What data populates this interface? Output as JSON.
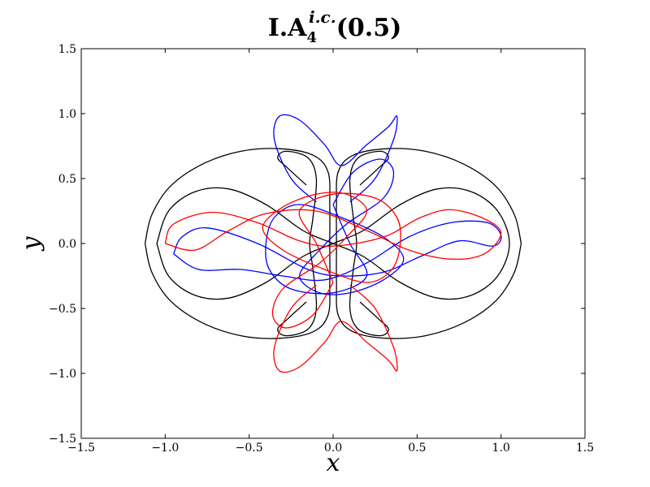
{
  "chart_data": {
    "type": "line",
    "title": {
      "main": "I.A",
      "subscript": "4",
      "superscript": "i.c.",
      "suffix": "(0.5)"
    },
    "xlabel": "x",
    "ylabel": "y",
    "xlim": [
      -1.5,
      1.5
    ],
    "ylim": [
      -1.5,
      1.5
    ],
    "xticks": [
      -1.5,
      -1.0,
      -0.5,
      0.0,
      0.5,
      1.0,
      1.5
    ],
    "yticks": [
      -1.5,
      -1.0,
      -0.5,
      0.0,
      0.5,
      1.0,
      1.5
    ],
    "xtick_labels": [
      "−1.5",
      "−1.0",
      "−0.5",
      "0.0",
      "0.5",
      "1.0",
      "1.5"
    ],
    "ytick_labels": [
      "−1.5",
      "−1.0",
      "−0.5",
      "0.0",
      "0.5",
      "1.0",
      "1.5"
    ],
    "grid": false,
    "series": [
      {
        "color": "#000000",
        "points": [
          [
            -1.12,
            0.0
          ],
          [
            -1.08,
            0.22
          ],
          [
            -0.97,
            0.44
          ],
          [
            -0.78,
            0.61
          ],
          [
            -0.55,
            0.71
          ],
          [
            -0.32,
            0.73
          ],
          [
            -0.12,
            0.68
          ],
          [
            -0.03,
            0.55
          ],
          [
            -0.02,
            0.3
          ],
          [
            -0.02,
            0.0
          ],
          [
            -0.02,
            -0.3
          ],
          [
            -0.03,
            -0.55
          ],
          [
            -0.12,
            -0.68
          ],
          [
            -0.32,
            -0.73
          ],
          [
            -0.55,
            -0.71
          ],
          [
            -0.78,
            -0.61
          ],
          [
            -0.97,
            -0.44
          ],
          [
            -1.08,
            -0.22
          ],
          [
            -1.12,
            0.0
          ]
        ]
      },
      {
        "color": "#000000",
        "points": [
          [
            1.12,
            0.0
          ],
          [
            1.08,
            0.22
          ],
          [
            0.97,
            0.44
          ],
          [
            0.78,
            0.61
          ],
          [
            0.55,
            0.71
          ],
          [
            0.32,
            0.73
          ],
          [
            0.12,
            0.68
          ],
          [
            0.03,
            0.55
          ],
          [
            0.02,
            0.3
          ],
          [
            0.02,
            0.0
          ],
          [
            0.02,
            -0.3
          ],
          [
            0.03,
            -0.55
          ],
          [
            0.12,
            -0.68
          ],
          [
            0.32,
            -0.73
          ],
          [
            0.55,
            -0.71
          ],
          [
            0.78,
            -0.61
          ],
          [
            0.97,
            -0.44
          ],
          [
            1.08,
            -0.22
          ],
          [
            1.12,
            0.0
          ]
        ]
      },
      {
        "color": "#000000",
        "points": [
          [
            -1.05,
            0.0
          ],
          [
            -0.98,
            0.25
          ],
          [
            -0.82,
            0.4
          ],
          [
            -0.62,
            0.42
          ],
          [
            -0.4,
            0.3
          ],
          [
            -0.18,
            0.1
          ],
          [
            0.0,
            0.0
          ],
          [
            0.18,
            -0.1
          ],
          [
            0.4,
            -0.3
          ],
          [
            0.62,
            -0.42
          ],
          [
            0.82,
            -0.4
          ],
          [
            0.98,
            -0.25
          ],
          [
            1.05,
            0.0
          ],
          [
            0.98,
            0.25
          ],
          [
            0.82,
            0.4
          ],
          [
            0.62,
            0.42
          ],
          [
            0.4,
            0.3
          ],
          [
            0.18,
            0.1
          ],
          [
            0.0,
            0.0
          ],
          [
            -0.18,
            -0.1
          ],
          [
            -0.4,
            -0.3
          ],
          [
            -0.62,
            -0.42
          ],
          [
            -0.82,
            -0.4
          ],
          [
            -0.98,
            -0.25
          ],
          [
            -1.05,
            0.0
          ]
        ]
      },
      {
        "color": "#000000",
        "points": [
          [
            -0.16,
            0.45
          ],
          [
            -0.27,
            0.58
          ],
          [
            -0.33,
            0.66
          ],
          [
            -0.28,
            0.71
          ],
          [
            -0.15,
            0.66
          ],
          [
            -0.1,
            0.5
          ],
          [
            -0.12,
            0.2
          ],
          [
            -0.14,
            0.0
          ],
          [
            -0.12,
            -0.2
          ],
          [
            -0.1,
            -0.5
          ],
          [
            -0.15,
            -0.66
          ],
          [
            -0.28,
            -0.71
          ],
          [
            -0.33,
            -0.66
          ],
          [
            -0.27,
            -0.58
          ],
          [
            -0.16,
            -0.45
          ]
        ]
      },
      {
        "color": "#000000",
        "points": [
          [
            0.16,
            0.45
          ],
          [
            0.27,
            0.58
          ],
          [
            0.33,
            0.66
          ],
          [
            0.28,
            0.71
          ],
          [
            0.15,
            0.66
          ],
          [
            0.1,
            0.5
          ],
          [
            0.12,
            0.2
          ],
          [
            0.14,
            0.0
          ],
          [
            0.12,
            -0.2
          ],
          [
            0.1,
            -0.5
          ],
          [
            0.15,
            -0.66
          ],
          [
            0.28,
            -0.71
          ],
          [
            0.33,
            -0.66
          ],
          [
            0.27,
            -0.58
          ],
          [
            0.16,
            -0.45
          ]
        ]
      },
      {
        "color": "#0000ff",
        "points": [
          [
            -0.95,
            -0.08
          ],
          [
            -0.9,
            0.05
          ],
          [
            -0.75,
            0.12
          ],
          [
            -0.45,
            0.0
          ],
          [
            -0.15,
            -0.2
          ],
          [
            0.05,
            -0.25
          ],
          [
            0.3,
            -0.22
          ],
          [
            0.52,
            -0.1
          ],
          [
            0.75,
            0.02
          ],
          [
            0.95,
            -0.02
          ],
          [
            1.0,
            0.06
          ],
          [
            0.92,
            0.16
          ],
          [
            0.7,
            0.16
          ],
          [
            0.45,
            0.05
          ],
          [
            0.2,
            -0.15
          ],
          [
            -0.05,
            -0.28
          ],
          [
            -0.3,
            -0.25
          ],
          [
            -0.55,
            -0.2
          ],
          [
            -0.8,
            -0.2
          ],
          [
            -0.95,
            -0.08
          ]
        ]
      },
      {
        "color": "#0000ff",
        "points": [
          [
            -0.1,
            0.32
          ],
          [
            -0.25,
            0.5
          ],
          [
            -0.35,
            0.8
          ],
          [
            -0.32,
            0.98
          ],
          [
            -0.2,
            0.95
          ],
          [
            -0.05,
            0.76
          ],
          [
            0.05,
            0.6
          ],
          [
            0.2,
            0.76
          ],
          [
            0.33,
            0.9
          ],
          [
            0.38,
            0.98
          ],
          [
            0.36,
            0.8
          ],
          [
            0.25,
            0.5
          ],
          [
            0.1,
            0.32
          ]
        ]
      },
      {
        "color": "#0000ff",
        "points": [
          [
            0.0,
            0.3
          ],
          [
            0.12,
            0.55
          ],
          [
            0.28,
            0.65
          ],
          [
            0.36,
            0.55
          ],
          [
            0.3,
            0.35
          ],
          [
            0.08,
            0.15
          ],
          [
            -0.08,
            -0.05
          ],
          [
            -0.2,
            -0.25
          ],
          [
            -0.08,
            -0.38
          ],
          [
            0.1,
            -0.38
          ],
          [
            0.3,
            -0.28
          ],
          [
            0.42,
            -0.12
          ],
          [
            0.3,
            0.05
          ],
          [
            0.05,
            0.2
          ],
          [
            -0.2,
            0.3
          ],
          [
            -0.35,
            0.2
          ],
          [
            -0.4,
            0.0
          ],
          [
            -0.38,
            -0.2
          ],
          [
            -0.25,
            -0.35
          ],
          [
            0.0,
            -0.38
          ],
          [
            0.2,
            -0.25
          ],
          [
            0.1,
            0.0
          ],
          [
            0.0,
            0.3
          ]
        ]
      },
      {
        "color": "#ff0000",
        "points": [
          [
            -1.0,
            0.0
          ],
          [
            -0.95,
            0.15
          ],
          [
            -0.72,
            0.24
          ],
          [
            -0.45,
            0.16
          ],
          [
            -0.2,
            0.02
          ],
          [
            0.0,
            -0.02
          ],
          [
            0.3,
            0.05
          ],
          [
            0.52,
            0.2
          ],
          [
            0.7,
            0.26
          ],
          [
            0.9,
            0.19
          ],
          [
            1.0,
            0.08
          ],
          [
            0.9,
            -0.08
          ],
          [
            0.7,
            -0.12
          ],
          [
            0.45,
            -0.05
          ],
          [
            0.2,
            0.1
          ],
          [
            -0.1,
            0.25
          ],
          [
            -0.4,
            0.23
          ],
          [
            -0.62,
            0.1
          ],
          [
            -0.82,
            -0.05
          ],
          [
            -1.0,
            0.0
          ]
        ]
      },
      {
        "color": "#ff0000",
        "points": [
          [
            -0.1,
            -0.32
          ],
          [
            -0.25,
            -0.5
          ],
          [
            -0.35,
            -0.8
          ],
          [
            -0.32,
            -0.98
          ],
          [
            -0.2,
            -0.95
          ],
          [
            -0.05,
            -0.76
          ],
          [
            0.05,
            -0.6
          ],
          [
            0.2,
            -0.76
          ],
          [
            0.33,
            -0.9
          ],
          [
            0.38,
            -0.98
          ],
          [
            0.36,
            -0.8
          ],
          [
            0.25,
            -0.5
          ],
          [
            0.1,
            -0.32
          ]
        ]
      },
      {
        "color": "#ff0000",
        "points": [
          [
            0.0,
            -0.3
          ],
          [
            -0.12,
            -0.55
          ],
          [
            -0.28,
            -0.65
          ],
          [
            -0.36,
            -0.55
          ],
          [
            -0.3,
            -0.35
          ],
          [
            -0.08,
            -0.15
          ],
          [
            0.08,
            0.05
          ],
          [
            0.2,
            0.25
          ],
          [
            0.08,
            0.38
          ],
          [
            -0.1,
            0.38
          ],
          [
            -0.3,
            0.28
          ],
          [
            -0.42,
            0.12
          ],
          [
            -0.3,
            -0.05
          ],
          [
            -0.05,
            -0.2
          ],
          [
            0.2,
            -0.3
          ],
          [
            0.35,
            -0.2
          ],
          [
            0.4,
            0.0
          ],
          [
            0.38,
            0.2
          ],
          [
            0.25,
            0.35
          ],
          [
            0.0,
            0.38
          ],
          [
            -0.2,
            0.25
          ],
          [
            -0.1,
            0.0
          ],
          [
            0.0,
            -0.3
          ]
        ]
      }
    ]
  }
}
